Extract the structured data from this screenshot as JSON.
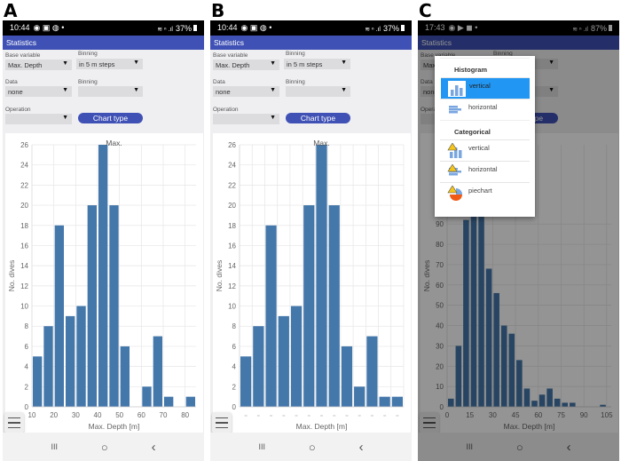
{
  "panels": [
    {
      "letter": "A",
      "status": {
        "time": "10:44",
        "left_icons": "◉ ▣ ◍ •",
        "right_icons": "≋ ⁿ .ıl",
        "battery": "37%"
      },
      "title": "Statistics",
      "form": {
        "base_variable_label": "Base variable",
        "base_variable_value": "Max. Depth",
        "binning_label": "Binning",
        "binning_value": "in 5 m steps",
        "data_label": "Data",
        "data_value": "none",
        "binning2_label": "Binning",
        "binning2_value": "",
        "operation_label": "Operation",
        "operation_value": "",
        "chart_type_button": "Chart type"
      },
      "nav": {
        "recents": "III",
        "home": "○",
        "back": "‹"
      }
    },
    {
      "letter": "B",
      "status": {
        "time": "10:44",
        "left_icons": "◉ ▣ ◍ •",
        "right_icons": "≋ ⁿ .ıl",
        "battery": "37%"
      },
      "title": "Statistics",
      "form": {
        "base_variable_label": "Base variable",
        "base_variable_value": "Max. Depth",
        "binning_label": "Binning",
        "binning_value": "in 5 m steps",
        "data_label": "Data",
        "data_value": "none",
        "binning2_label": "Binning",
        "binning2_value": "",
        "operation_label": "Operation",
        "operation_value": "",
        "chart_type_button": "Chart type"
      },
      "nav": {
        "recents": "III",
        "home": "○",
        "back": "‹"
      }
    },
    {
      "letter": "C",
      "status": {
        "time": "17:43",
        "left_icons": "◉ ▶ ◼ •",
        "right_icons": "≋ ⁿ .ıl",
        "battery": "87%"
      },
      "title": "Statistics",
      "form": {
        "base_variable_label": "Base variable",
        "base_variable_value": "Max. Depth",
        "binning_label": "Binning",
        "binning_value": "in 5 m steps",
        "data_label": "Data",
        "data_value": "none",
        "binning2_label": "Binning",
        "binning2_value": "",
        "operation_label": "Operation",
        "operation_value": "",
        "chart_type_button": "Chart type"
      },
      "nav": {
        "recents": "III",
        "home": "○",
        "back": "‹"
      },
      "chart_type_dialog": {
        "sections": [
          {
            "title": "Histogram",
            "items": [
              {
                "label": "vertical",
                "icon": "histogram-vertical-icon",
                "selected": true
              },
              {
                "label": "horizontal",
                "icon": "histogram-horizontal-icon",
                "selected": false
              }
            ]
          },
          {
            "title": "Categorical",
            "items": [
              {
                "label": "vertical",
                "icon": "categorical-vertical-warning-icon",
                "selected": false
              },
              {
                "label": "horizontal",
                "icon": "categorical-horizontal-warning-icon",
                "selected": false
              },
              {
                "label": "piechart",
                "icon": "piechart-warning-icon",
                "selected": false
              }
            ]
          }
        ],
        "selected_color": "#2196f3"
      }
    }
  ],
  "chart_data": [
    {
      "type": "bar",
      "title": "Max.",
      "xlabel": "Max. Depth [m]",
      "ylabel": "No. dives",
      "bin_starts": [
        10,
        15,
        20,
        25,
        30,
        35,
        40,
        45,
        50,
        55,
        60,
        65,
        70,
        75,
        80
      ],
      "bin_width": 5,
      "values": [
        5,
        8,
        18,
        9,
        10,
        20,
        26,
        20,
        6,
        0,
        2,
        7,
        1,
        0,
        1
      ],
      "xlim": [
        10,
        85
      ],
      "ylim": [
        0,
        26
      ],
      "xticks": [
        "10",
        "20",
        "30",
        "40",
        "50",
        "60",
        "70",
        "80"
      ],
      "yticks": [
        "0",
        "2",
        "4",
        "6",
        "8",
        "10",
        "12",
        "14",
        "16",
        "18",
        "20",
        "22",
        "24",
        "26"
      ],
      "grid": true,
      "color": "#4477aa"
    },
    {
      "type": "bar",
      "title": "Max.",
      "xlabel": "Max. Depth [m]",
      "ylabel": "No. dives",
      "values": [
        5,
        8,
        18,
        9,
        10,
        20,
        26,
        20,
        6,
        2,
        7,
        1,
        1
      ],
      "ylim": [
        0,
        26
      ],
      "yticks": [
        "0",
        "2",
        "4",
        "6",
        "8",
        "10",
        "12",
        "14",
        "16",
        "18",
        "20",
        "22",
        "24",
        "26"
      ],
      "grid": true,
      "color": "#4477aa"
    },
    {
      "type": "bar",
      "xlabel": "Max. Depth [m]",
      "ylabel": "No. dives",
      "bin_starts": [
        0,
        5,
        10,
        15,
        20,
        25,
        30,
        35,
        40,
        45,
        50,
        55,
        60,
        65,
        70,
        75,
        80,
        85,
        90,
        95,
        100
      ],
      "bin_width": 5,
      "values": [
        4,
        30,
        92,
        120,
        110,
        68,
        56,
        40,
        36,
        23,
        9,
        3,
        6,
        9,
        4,
        2,
        2,
        0,
        0,
        0,
        1
      ],
      "xlim": [
        0,
        108
      ],
      "ylim": [
        0,
        129
      ],
      "xticks": [
        "0",
        "15",
        "30",
        "45",
        "60",
        "75",
        "90",
        "105"
      ],
      "yticks": [
        "0",
        "10",
        "20",
        "30",
        "40",
        "50",
        "60",
        "70",
        "80",
        "90"
      ],
      "grid": true,
      "color": "#4477aa"
    }
  ]
}
